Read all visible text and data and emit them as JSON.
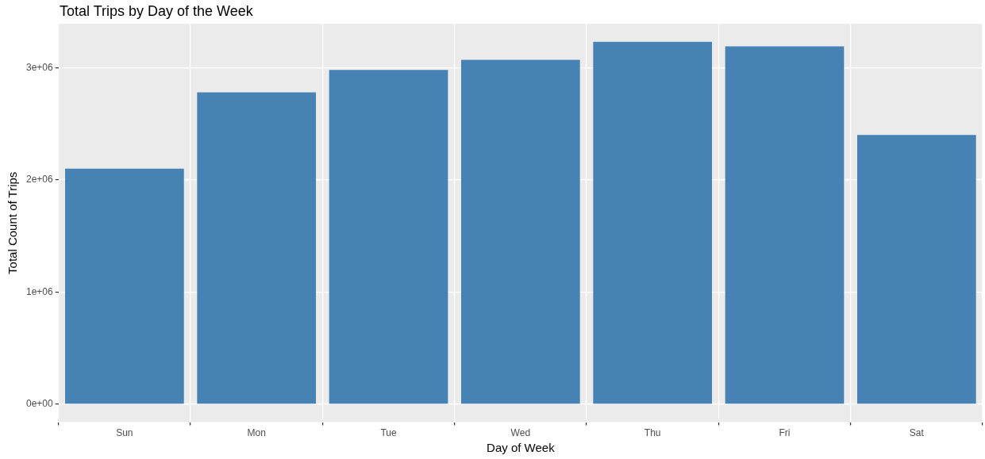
{
  "chart_data": {
    "type": "bar",
    "title": "Total Trips by Day of the Week",
    "xlabel": "Day of Week",
    "ylabel": "Total Count of Trips",
    "categories": [
      "Sun",
      "Mon",
      "Tue",
      "Wed",
      "Thu",
      "Fri",
      "Sat"
    ],
    "values": [
      2100000,
      2780000,
      2980000,
      3070000,
      3230000,
      3190000,
      2400000
    ],
    "color": "#4682b4",
    "ylim": [
      -161500,
      3391500
    ],
    "yticks": [
      {
        "value": 0,
        "label": "0e+00"
      },
      {
        "value": 1000000,
        "label": "1e+06"
      },
      {
        "value": 2000000,
        "label": "2e+06"
      },
      {
        "value": 3000000,
        "label": "3e+06"
      }
    ],
    "grid": true,
    "legend": false
  }
}
